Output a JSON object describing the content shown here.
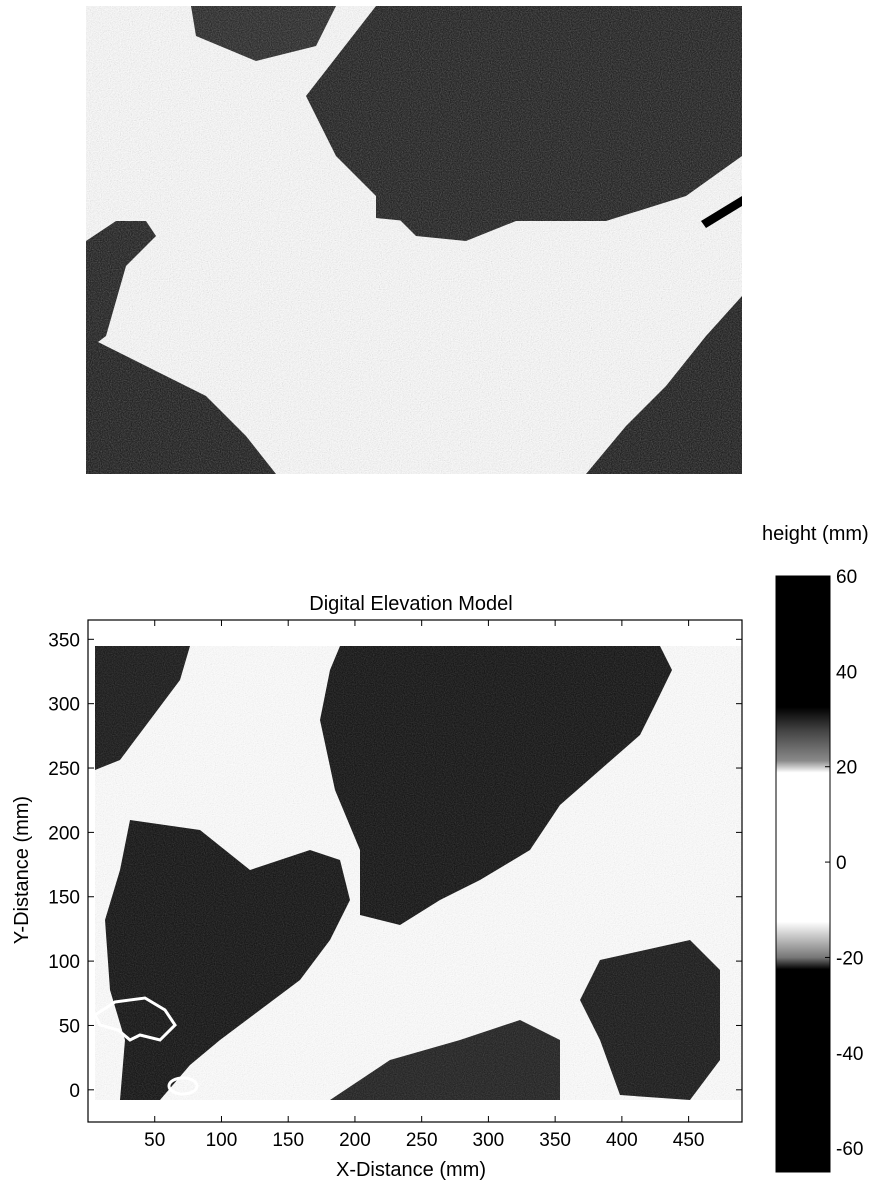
{
  "chart_data": {
    "type": "heatmap",
    "title": "Digital Elevation Model",
    "xlabel": "X-Distance (mm)",
    "ylabel": "Y-Distance (mm)",
    "xlim": [
      0,
      490
    ],
    "ylim": [
      -25,
      365
    ],
    "xticks": [
      50,
      100,
      150,
      200,
      250,
      300,
      350,
      400,
      450
    ],
    "yticks": [
      0,
      50,
      100,
      150,
      200,
      250,
      300,
      350
    ],
    "colorbar": {
      "label": "height (mm)",
      "range": [
        -65,
        60
      ],
      "ticks": [
        60,
        40,
        20,
        0,
        -20,
        -40,
        -60
      ],
      "colormap": "grayscale (black = low and high, white = near 0)"
    },
    "data_extent": {
      "x": [
        0,
        490
      ],
      "y": [
        0,
        345
      ]
    },
    "regions": [
      {
        "name": "upper dark basin",
        "level": "low",
        "approx_center": [
          280,
          270
        ]
      },
      {
        "name": "lower-left dark basin",
        "level": "low",
        "approx_center": [
          120,
          110
        ]
      },
      {
        "name": "lower-right dark area",
        "level": "low",
        "approx_center": [
          420,
          80
        ]
      },
      {
        "name": "diagonal ridge",
        "level": "near 0",
        "from": [
          150,
          0
        ],
        "to": [
          490,
          290
        ]
      }
    ],
    "grid": false
  },
  "photo": {
    "description_icon": "photo-icon"
  }
}
